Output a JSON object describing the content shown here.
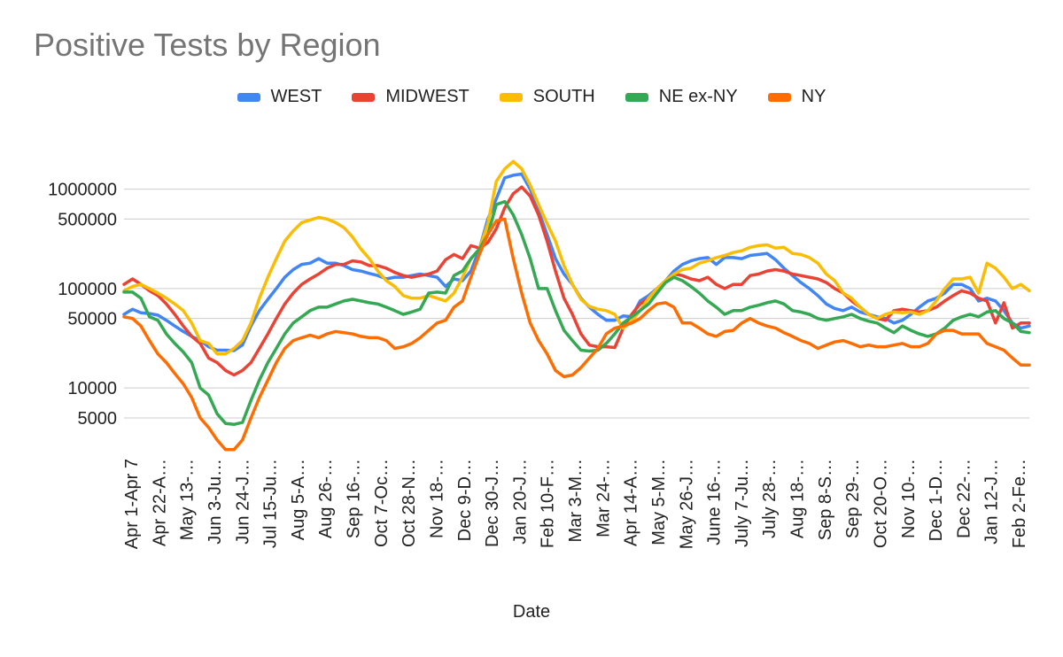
{
  "chart_data": {
    "type": "line",
    "title": "Positive Tests by Region",
    "xlabel": "Date",
    "ylabel": "",
    "yscale": "log",
    "ylim": [
      2200,
      3000000
    ],
    "grid": true,
    "legend_position": "top",
    "y_ticks": [
      {
        "value": 5000,
        "label": "5000"
      },
      {
        "value": 10000,
        "label": "10000"
      },
      {
        "value": 50000,
        "label": "50000"
      },
      {
        "value": 100000,
        "label": "100000"
      },
      {
        "value": 500000,
        "label": "500000"
      },
      {
        "value": 1000000,
        "label": "1000000"
      }
    ],
    "x_tick_labels": [
      "Apr 1-Apr 7",
      "Apr 22-A…",
      "May 13-…",
      "Jun 3-Ju…",
      "Jun 24-J…",
      "Jul 15-Ju…",
      "Aug 5-A…",
      "Aug 26-…",
      "Sep 16-…",
      "Oct 7-Oc…",
      "Oct 28-N…",
      "Nov 18-…",
      "Dec 9-D…",
      "Dec 30-J…",
      "Jan 20-J…",
      "Feb 10-F…",
      "Mar 3-M…",
      "Mar 24-…",
      "Apr 14-A…",
      "May 5-M…",
      "May 26-J…",
      "June 16-…",
      "July 7-Ju…",
      "July 28-…",
      "Aug 18-…",
      "Sep 8-S…",
      "Sep 29-…",
      "Oct 20-O…",
      "Nov 10-…",
      "Dec 1-D…",
      "Dec 22-…",
      "Jan 12-J…",
      "Feb 2-Fe…"
    ],
    "series": [
      {
        "name": "WEST",
        "color": "#4285f4",
        "values": [
          55000,
          62000,
          57000,
          56000,
          54000,
          48000,
          42000,
          37000,
          33000,
          30000,
          26000,
          24000,
          24000,
          23800,
          27000,
          42000,
          60000,
          78000,
          100000,
          130000,
          155000,
          175000,
          180000,
          200000,
          180000,
          180000,
          170000,
          155000,
          150000,
          142000,
          135000,
          125000,
          130000,
          130000,
          135000,
          140000,
          135000,
          130000,
          105000,
          125000,
          120000,
          150000,
          250000,
          500000,
          800000,
          1300000,
          1380000,
          1420000,
          1000000,
          600000,
          350000,
          200000,
          140000,
          110000,
          80000,
          65000,
          55000,
          48000,
          48000,
          53000,
          52000,
          75000,
          85000,
          100000,
          120000,
          150000,
          175000,
          190000,
          200000,
          205000,
          175000,
          205000,
          205000,
          200000,
          215000,
          220000,
          225000,
          195000,
          160000,
          135000,
          115000,
          100000,
          85000,
          70000,
          63000,
          60000,
          65000,
          58000,
          55000,
          52000,
          50000,
          45000,
          48000,
          55000,
          65000,
          75000,
          80000,
          90000,
          110000,
          110000,
          100000,
          75000,
          80000,
          75000,
          60000,
          45000,
          40000,
          42000
        ]
      },
      {
        "name": "MIDWEST",
        "color": "#ea4335",
        "values": [
          110000,
          125000,
          110000,
          95000,
          85000,
          70000,
          55000,
          42000,
          33000,
          28000,
          20000,
          18000,
          15000,
          13500,
          15000,
          18000,
          25000,
          35000,
          50000,
          70000,
          90000,
          110000,
          125000,
          140000,
          160000,
          175000,
          175000,
          190000,
          185000,
          170000,
          170000,
          160000,
          145000,
          135000,
          130000,
          135000,
          140000,
          150000,
          195000,
          220000,
          200000,
          270000,
          255000,
          290000,
          400000,
          650000,
          900000,
          1050000,
          850000,
          550000,
          300000,
          150000,
          80000,
          55000,
          35000,
          27000,
          26000,
          26000,
          25500,
          40000,
          55000,
          70000,
          80000,
          100000,
          120000,
          140000,
          135000,
          125000,
          120000,
          130000,
          110000,
          100000,
          110000,
          110000,
          135000,
          140000,
          150000,
          155000,
          150000,
          140000,
          135000,
          130000,
          125000,
          115000,
          100000,
          90000,
          75000,
          65000,
          55000,
          50000,
          48000,
          60000,
          62000,
          60000,
          58000,
          60000,
          65000,
          75000,
          85000,
          95000,
          90000,
          80000,
          75000,
          45000,
          72000,
          40000,
          45000,
          45000
        ]
      },
      {
        "name": "SOUTH",
        "color": "#fbbc04",
        "values": [
          95000,
          105000,
          110000,
          100000,
          90000,
          80000,
          70000,
          60000,
          45000,
          30000,
          28000,
          22000,
          22000,
          25000,
          30000,
          45000,
          80000,
          130000,
          200000,
          300000,
          380000,
          460000,
          490000,
          520000,
          500000,
          460000,
          410000,
          330000,
          250000,
          200000,
          150000,
          120000,
          105000,
          85000,
          80000,
          80000,
          85000,
          80000,
          75000,
          90000,
          130000,
          200000,
          250000,
          450000,
          1200000,
          1600000,
          1900000,
          1600000,
          1100000,
          700000,
          450000,
          300000,
          170000,
          110000,
          78000,
          66000,
          62000,
          60000,
          55000,
          40000,
          47000,
          60000,
          80000,
          100000,
          120000,
          140000,
          155000,
          160000,
          180000,
          190000,
          205000,
          215000,
          230000,
          240000,
          260000,
          270000,
          275000,
          255000,
          260000,
          225000,
          220000,
          205000,
          180000,
          140000,
          120000,
          90000,
          80000,
          65000,
          55000,
          50000,
          55000,
          58000,
          57000,
          58000,
          55000,
          60000,
          75000,
          100000,
          125000,
          125000,
          130000,
          90000,
          180000,
          160000,
          130000,
          100000,
          110000,
          95000
        ]
      },
      {
        "name": "NE ex-NY",
        "color": "#34a853",
        "values": [
          92000,
          92000,
          80000,
          52000,
          48000,
          35000,
          28000,
          23000,
          18000,
          10000,
          8500,
          5500,
          4400,
          4300,
          4500,
          7500,
          12000,
          18000,
          25000,
          35000,
          45000,
          52000,
          60000,
          65000,
          65000,
          70000,
          75000,
          78000,
          75000,
          72000,
          70000,
          65000,
          60000,
          55000,
          58000,
          62000,
          90000,
          92000,
          90000,
          135000,
          150000,
          200000,
          250000,
          350000,
          700000,
          750000,
          550000,
          350000,
          200000,
          100000,
          100000,
          60000,
          38000,
          30000,
          24000,
          23500,
          24000,
          28000,
          35000,
          45000,
          52000,
          60000,
          70000,
          90000,
          115000,
          130000,
          120000,
          105000,
          90000,
          75000,
          65000,
          55000,
          60000,
          60000,
          65000,
          68000,
          72000,
          75000,
          70000,
          60000,
          58000,
          55000,
          50000,
          48000,
          50000,
          52000,
          55000,
          50000,
          47000,
          45000,
          40000,
          36000,
          42000,
          38000,
          35000,
          33000,
          35000,
          40000,
          48000,
          52000,
          55000,
          52000,
          58000,
          60000,
          50000,
          45000,
          37000,
          36000
        ]
      },
      {
        "name": "NY",
        "color": "#ff6d01",
        "values": [
          52000,
          50000,
          42000,
          30000,
          22000,
          18000,
          14000,
          11000,
          8000,
          5000,
          4000,
          3000,
          2400,
          2400,
          3000,
          5000,
          8000,
          12000,
          18000,
          25000,
          30000,
          32000,
          34000,
          32000,
          35000,
          37000,
          36000,
          35000,
          33000,
          32000,
          32000,
          30000,
          25000,
          26000,
          28000,
          32000,
          38000,
          45000,
          48000,
          65000,
          75000,
          130000,
          220000,
          350000,
          480000,
          500000,
          200000,
          90000,
          45000,
          30000,
          22000,
          15000,
          13000,
          13500,
          16000,
          20000,
          25000,
          35000,
          40000,
          42000,
          45000,
          50000,
          60000,
          70000,
          72000,
          65000,
          45000,
          45000,
          40000,
          35000,
          33000,
          37000,
          38000,
          45000,
          50000,
          45000,
          42000,
          40000,
          36000,
          33000,
          30000,
          28000,
          25000,
          27000,
          29000,
          30000,
          28000,
          26000,
          27000,
          26000,
          26000,
          27000,
          28000,
          26000,
          26000,
          28000,
          35000,
          38000,
          38000,
          35000,
          35000,
          35000,
          28000,
          26000,
          24000,
          20000,
          17000,
          17000
        ]
      }
    ]
  }
}
